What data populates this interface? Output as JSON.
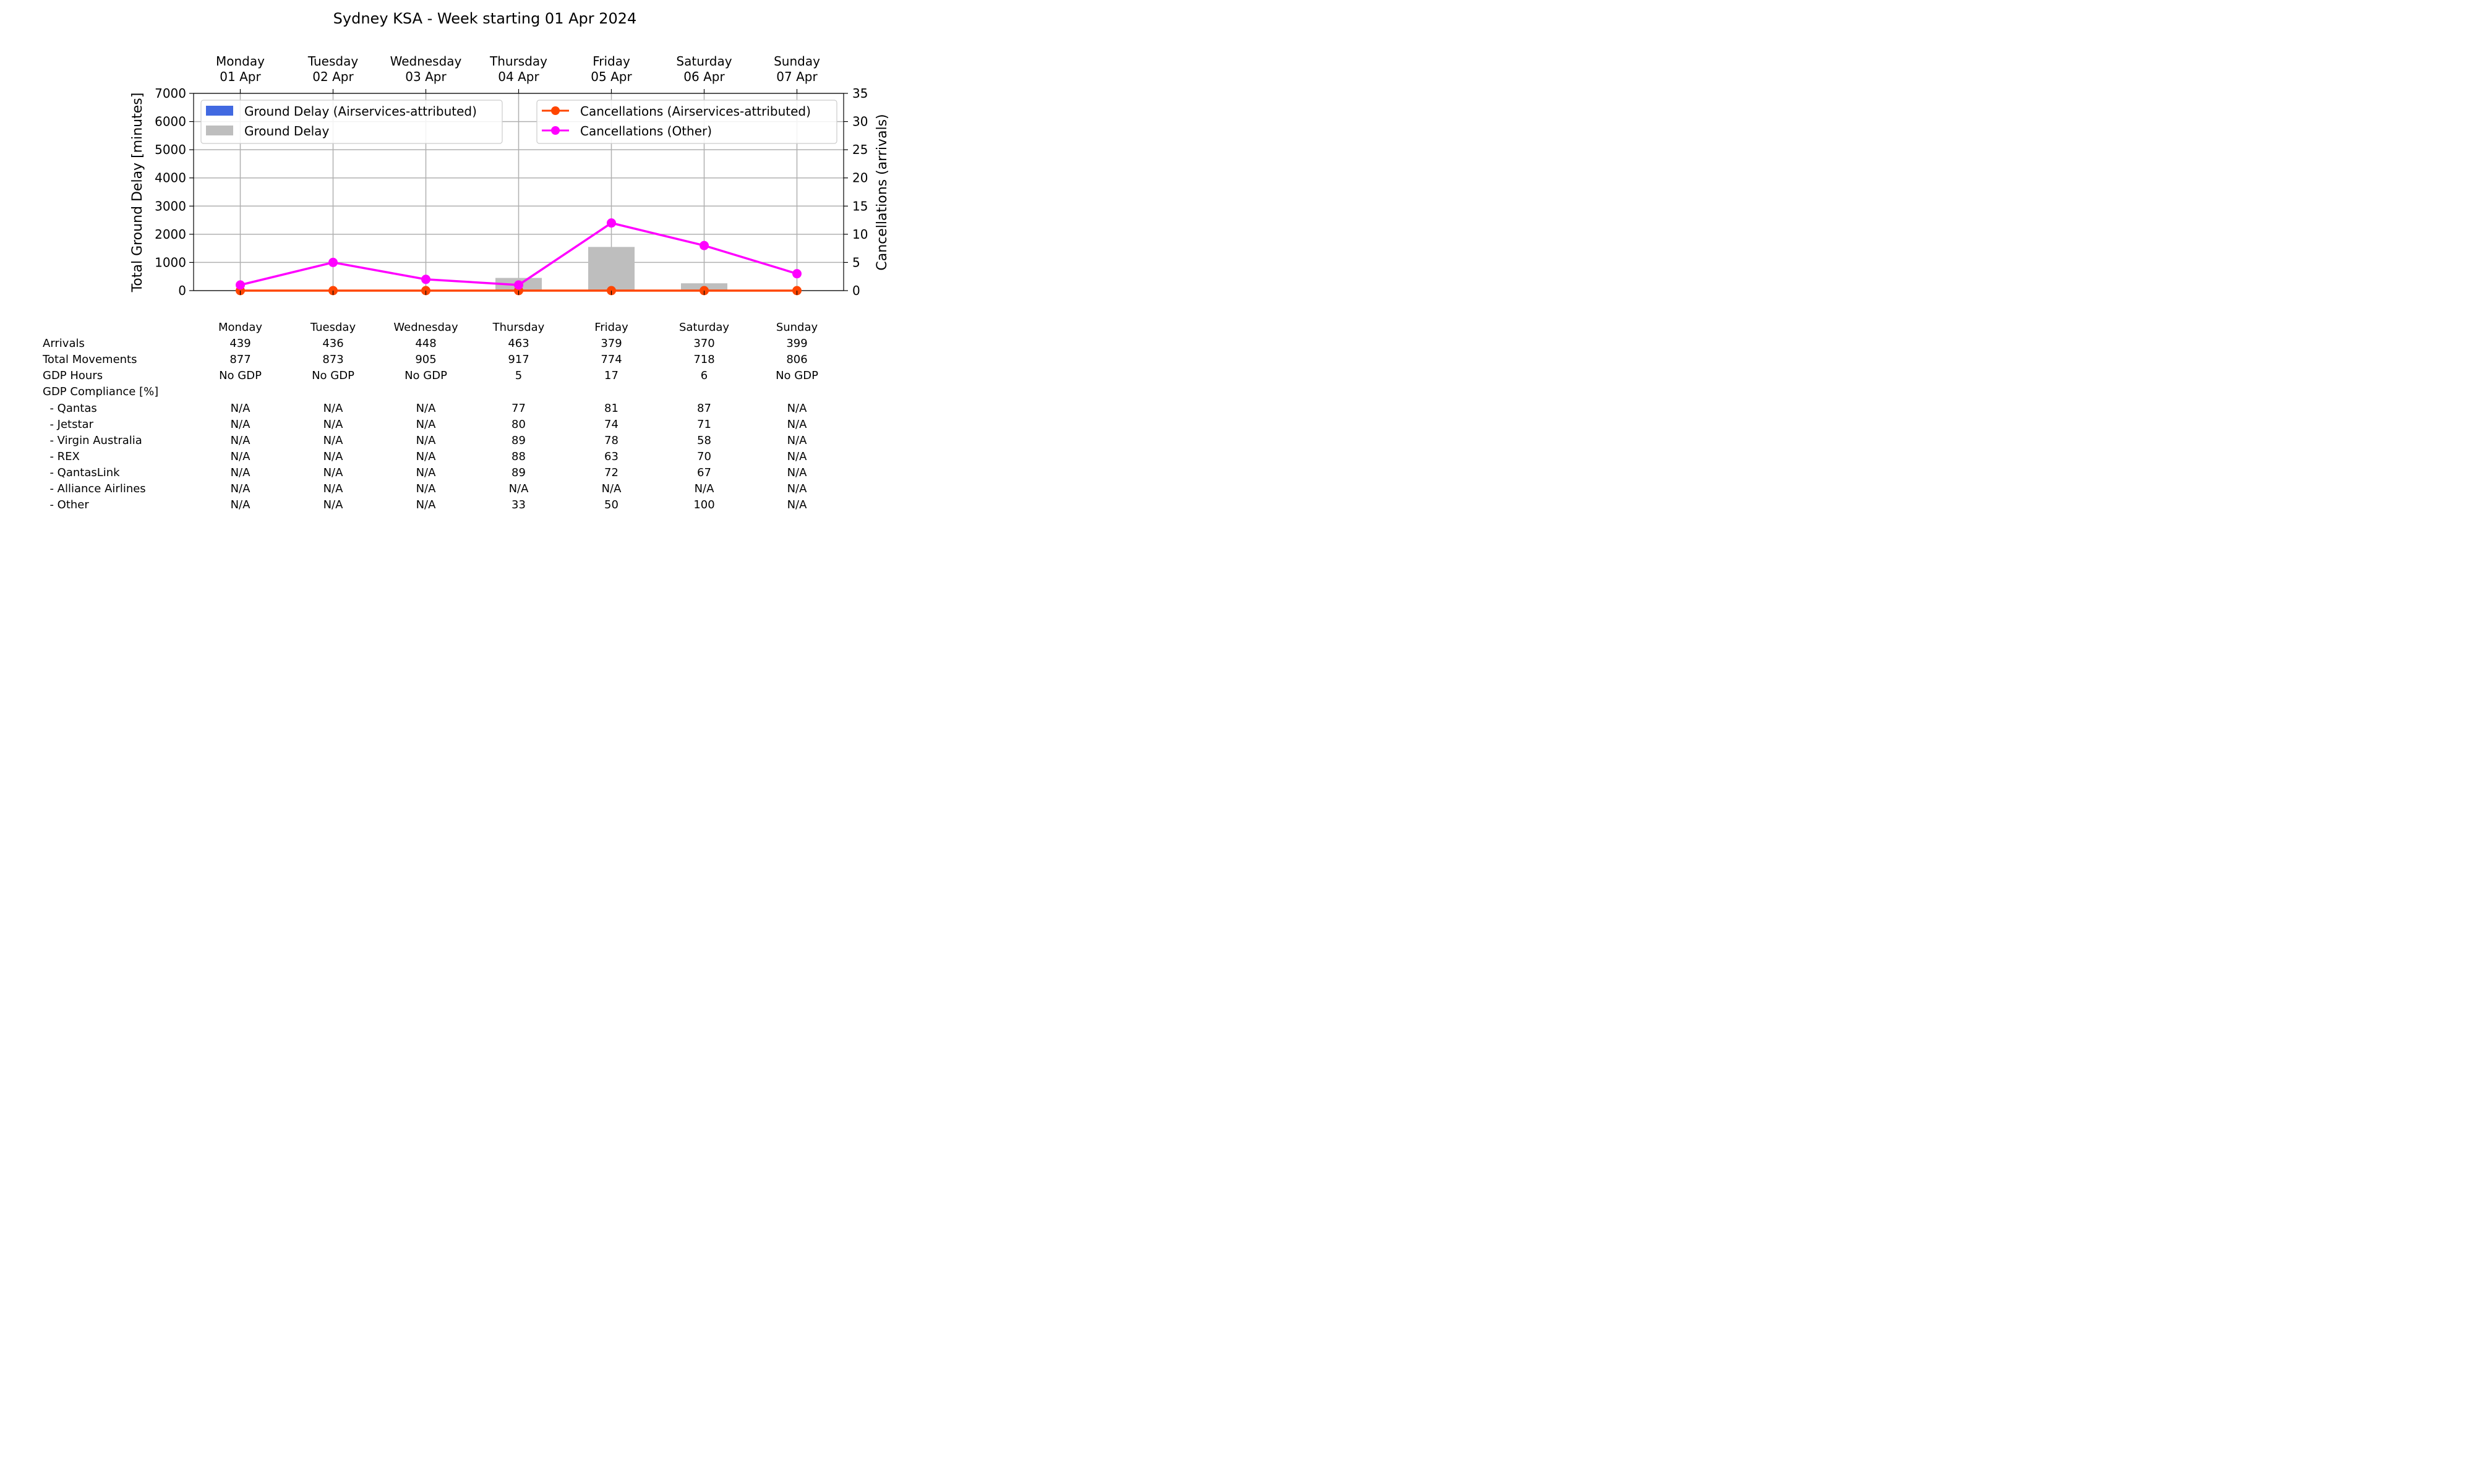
{
  "chart_data": {
    "type": "bar+line",
    "title": "Sydney KSA - Week starting 01 Apr 2024",
    "categories": [
      "Monday",
      "Tuesday",
      "Wednesday",
      "Thursday",
      "Friday",
      "Saturday",
      "Sunday"
    ],
    "category_dates": [
      "01 Apr",
      "02 Apr",
      "03 Apr",
      "04 Apr",
      "05 Apr",
      "06 Apr",
      "07 Apr"
    ],
    "ylabel_left": "Total Ground Delay [minutes]",
    "ylabel_right": "Cancellations (arrivals)",
    "ylim_left": [
      0,
      7000
    ],
    "ylim_right": [
      0,
      35
    ],
    "yticks_left": [
      "0",
      "1000",
      "2000",
      "3000",
      "4000",
      "5000",
      "6000",
      "7000"
    ],
    "yticks_right": [
      "0",
      "5",
      "10",
      "15",
      "20",
      "25",
      "30",
      "35"
    ],
    "grid": true,
    "legend_left_placement": "upper-left",
    "legend_right_placement": "upper-right",
    "series": [
      {
        "name": "Ground Delay (Airservices-attributed)",
        "kind": "bar",
        "axis": "left",
        "color": "#4169e1",
        "values": [
          0,
          0,
          0,
          0,
          0,
          0,
          0
        ]
      },
      {
        "name": "Ground Delay",
        "kind": "bar",
        "axis": "left",
        "color": "#bebebe",
        "values": [
          0,
          0,
          0,
          450,
          1550,
          260,
          0
        ]
      },
      {
        "name": "Cancellations (Airservices-attributed)",
        "kind": "line",
        "axis": "right",
        "color": "#ff4500",
        "values": [
          0,
          0,
          0,
          0,
          0,
          0,
          0
        ]
      },
      {
        "name": "Cancellations (Other)",
        "kind": "line",
        "axis": "right",
        "color": "#ff00ff",
        "values": [
          1,
          5,
          2,
          1,
          12,
          8,
          3
        ]
      }
    ]
  },
  "table": {
    "columns": [
      "Monday",
      "Tuesday",
      "Wednesday",
      "Thursday",
      "Friday",
      "Saturday",
      "Sunday"
    ],
    "rows": [
      {
        "label": "Arrivals",
        "values": [
          "439",
          "436",
          "448",
          "463",
          "379",
          "370",
          "399"
        ]
      },
      {
        "label": "Total Movements",
        "values": [
          "877",
          "873",
          "905",
          "917",
          "774",
          "718",
          "806"
        ]
      },
      {
        "label": "GDP Hours",
        "values": [
          "No GDP",
          "No GDP",
          "No GDP",
          "5",
          "17",
          "6",
          "No GDP"
        ]
      },
      {
        "label": "GDP Compliance [%]",
        "values": [
          "",
          "",
          "",
          "",
          "",
          "",
          ""
        ]
      },
      {
        "label": "  - Qantas",
        "values": [
          "N/A",
          "N/A",
          "N/A",
          "77",
          "81",
          "87",
          "N/A"
        ]
      },
      {
        "label": "  - Jetstar",
        "values": [
          "N/A",
          "N/A",
          "N/A",
          "80",
          "74",
          "71",
          "N/A"
        ]
      },
      {
        "label": "  - Virgin Australia",
        "values": [
          "N/A",
          "N/A",
          "N/A",
          "89",
          "78",
          "58",
          "N/A"
        ]
      },
      {
        "label": "  - REX",
        "values": [
          "N/A",
          "N/A",
          "N/A",
          "88",
          "63",
          "70",
          "N/A"
        ]
      },
      {
        "label": "  - QantasLink",
        "values": [
          "N/A",
          "N/A",
          "N/A",
          "89",
          "72",
          "67",
          "N/A"
        ]
      },
      {
        "label": "  - Alliance Airlines",
        "values": [
          "N/A",
          "N/A",
          "N/A",
          "N/A",
          "N/A",
          "N/A",
          "N/A"
        ]
      },
      {
        "label": "  - Other",
        "values": [
          "N/A",
          "N/A",
          "N/A",
          "33",
          "50",
          "100",
          "N/A"
        ]
      }
    ]
  }
}
